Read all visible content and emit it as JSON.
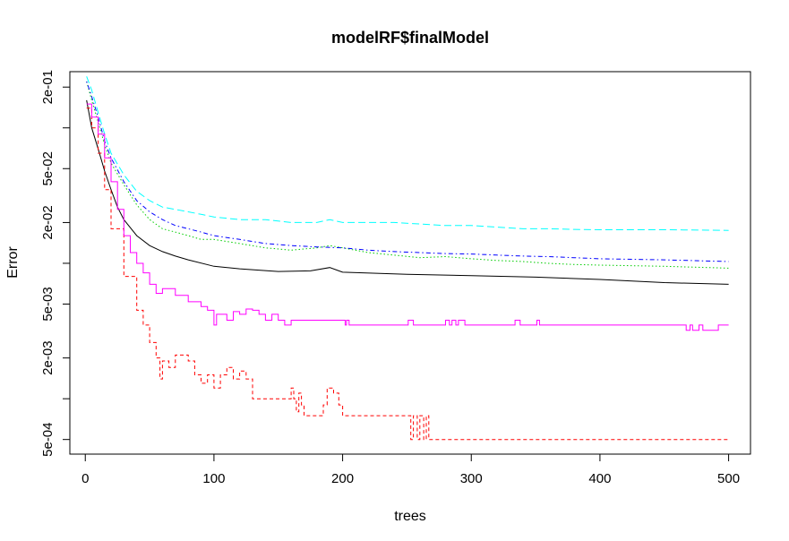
{
  "chart_data": {
    "type": "line",
    "title": "modelRF$finalModel",
    "xlabel": "trees",
    "ylabel": "Error",
    "xlim": [
      -12,
      517
    ],
    "ylim": [
      0.00039,
      0.26
    ],
    "log_y": true,
    "x_ticks": [
      0,
      100,
      200,
      300,
      400,
      500
    ],
    "x_tick_labels": [
      "0",
      "100",
      "200",
      "300",
      "400",
      "500"
    ],
    "y_ticks": [
      0.2,
      0.05,
      0.02,
      0.005,
      0.002,
      0.0005
    ],
    "y_tick_labels": [
      "2e-01",
      "5e-02",
      "2e-02",
      "5e-03",
      "2e-03",
      "5e-04"
    ],
    "grid": false,
    "legend": "none",
    "series": [
      {
        "color": "#000000",
        "line_style": "solid",
        "step": false,
        "x": [
          1,
          5,
          10,
          15,
          20,
          25,
          30,
          40,
          50,
          60,
          70,
          80,
          100,
          120,
          150,
          175,
          190,
          200,
          250,
          300,
          350,
          400,
          450,
          500
        ],
        "y": [
          0.16,
          0.1,
          0.07,
          0.048,
          0.035,
          0.026,
          0.021,
          0.016,
          0.0135,
          0.0122,
          0.0113,
          0.0106,
          0.0095,
          0.0091,
          0.0087,
          0.0088,
          0.0093,
          0.0086,
          0.0083,
          0.0081,
          0.0079,
          0.0076,
          0.0072,
          0.007
        ]
      },
      {
        "color": "#ff0000",
        "line_style": "dashed",
        "step": true,
        "x": [
          1,
          5,
          10,
          15,
          20,
          30,
          40,
          45,
          50,
          55,
          58,
          60,
          65,
          70,
          80,
          85,
          90,
          95,
          100,
          105,
          110,
          115,
          120,
          125,
          130,
          140,
          160,
          162,
          164,
          166,
          168,
          170,
          175,
          180,
          185,
          188,
          190,
          193,
          197,
          200,
          210,
          220,
          240,
          250,
          253,
          255,
          258,
          260,
          263,
          265,
          267,
          270,
          300,
          350,
          400,
          450,
          500
        ],
        "y": [
          0.14,
          0.1,
          0.065,
          0.035,
          0.018,
          0.008,
          0.0045,
          0.0035,
          0.0026,
          0.002,
          0.0014,
          0.0019,
          0.0017,
          0.0021,
          0.0019,
          0.0015,
          0.0013,
          0.0015,
          0.0012,
          0.0015,
          0.0017,
          0.0014,
          0.0016,
          0.0014,
          0.001,
          0.001,
          0.0012,
          0.001,
          0.0008,
          0.0011,
          0.0009,
          0.00075,
          0.00075,
          0.00075,
          0.0009,
          0.0012,
          0.0012,
          0.0011,
          0.0009,
          0.00075,
          0.00075,
          0.00075,
          0.00075,
          0.00075,
          0.0005,
          0.00075,
          0.0005,
          0.00075,
          0.0005,
          0.00075,
          0.0005,
          0.0005,
          0.0005,
          0.0005,
          0.0005,
          0.0005,
          0.0005
        ]
      },
      {
        "color": "#00cd00",
        "line_style": "dotted",
        "step": false,
        "x": [
          1,
          5,
          10,
          15,
          20,
          30,
          40,
          50,
          60,
          70,
          80,
          90,
          100,
          120,
          140,
          160,
          180,
          190,
          200,
          220,
          240,
          260,
          280,
          300,
          320,
          340,
          360,
          380,
          400,
          450,
          500
        ],
        "y": [
          0.22,
          0.16,
          0.11,
          0.075,
          0.055,
          0.038,
          0.027,
          0.021,
          0.018,
          0.017,
          0.016,
          0.015,
          0.015,
          0.014,
          0.013,
          0.0125,
          0.013,
          0.0135,
          0.013,
          0.012,
          0.0115,
          0.011,
          0.0112,
          0.0108,
          0.0105,
          0.0103,
          0.01,
          0.0098,
          0.0097,
          0.0095,
          0.0092
        ]
      },
      {
        "color": "#0000ff",
        "line_style": "dotdash",
        "step": false,
        "x": [
          1,
          5,
          10,
          15,
          20,
          30,
          40,
          50,
          60,
          70,
          80,
          90,
          100,
          120,
          140,
          160,
          180,
          200,
          220,
          240,
          260,
          280,
          300,
          320,
          340,
          360,
          380,
          400,
          450,
          500
        ],
        "y": [
          0.22,
          0.17,
          0.12,
          0.08,
          0.06,
          0.04,
          0.029,
          0.024,
          0.021,
          0.019,
          0.018,
          0.017,
          0.016,
          0.015,
          0.014,
          0.0135,
          0.0132,
          0.013,
          0.0125,
          0.0122,
          0.012,
          0.0118,
          0.0117,
          0.0115,
          0.0113,
          0.0112,
          0.011,
          0.0108,
          0.0106,
          0.0103
        ]
      },
      {
        "color": "#00ffff",
        "line_style": "longdash",
        "step": false,
        "x": [
          1,
          5,
          10,
          15,
          20,
          30,
          40,
          50,
          60,
          70,
          80,
          90,
          100,
          120,
          140,
          160,
          180,
          190,
          200,
          220,
          240,
          260,
          280,
          300,
          320,
          340,
          360,
          380,
          400,
          450,
          500
        ],
        "y": [
          0.24,
          0.19,
          0.13,
          0.09,
          0.065,
          0.045,
          0.034,
          0.029,
          0.026,
          0.025,
          0.024,
          0.023,
          0.022,
          0.021,
          0.021,
          0.02,
          0.02,
          0.021,
          0.02,
          0.02,
          0.02,
          0.0195,
          0.019,
          0.019,
          0.0185,
          0.018,
          0.018,
          0.0178,
          0.0177,
          0.0177,
          0.0175
        ]
      },
      {
        "color": "#ff00ff",
        "line_style": "solid",
        "step": true,
        "x": [
          1,
          5,
          10,
          15,
          20,
          25,
          30,
          35,
          40,
          45,
          50,
          55,
          60,
          70,
          80,
          90,
          95,
          100,
          102,
          105,
          110,
          115,
          120,
          125,
          130,
          135,
          140,
          145,
          150,
          155,
          160,
          170,
          180,
          190,
          200,
          202,
          203,
          205,
          250,
          251,
          253,
          255,
          278,
          280,
          283,
          285,
          288,
          290,
          292,
          295,
          333,
          334,
          336,
          338,
          350,
          351,
          353,
          465,
          467,
          470,
          472,
          475,
          477,
          480,
          485,
          490,
          492,
          495,
          500
        ],
        "y": [
          0.15,
          0.12,
          0.09,
          0.06,
          0.04,
          0.025,
          0.016,
          0.012,
          0.01,
          0.0085,
          0.007,
          0.006,
          0.0065,
          0.0058,
          0.0052,
          0.0048,
          0.0045,
          0.0035,
          0.0042,
          0.0042,
          0.0038,
          0.0044,
          0.0042,
          0.0046,
          0.0045,
          0.0042,
          0.0038,
          0.0042,
          0.0038,
          0.0035,
          0.0038,
          0.0038,
          0.0038,
          0.0038,
          0.0038,
          0.0035,
          0.0038,
          0.0035,
          0.0035,
          0.0038,
          0.0038,
          0.0035,
          0.0035,
          0.0038,
          0.0035,
          0.0038,
          0.0035,
          0.0038,
          0.0038,
          0.0035,
          0.0035,
          0.0038,
          0.0038,
          0.0035,
          0.0035,
          0.0038,
          0.0035,
          0.0035,
          0.0032,
          0.0035,
          0.0032,
          0.0032,
          0.0035,
          0.0032,
          0.0032,
          0.0032,
          0.0035,
          0.0035,
          0.0035
        ]
      }
    ]
  }
}
